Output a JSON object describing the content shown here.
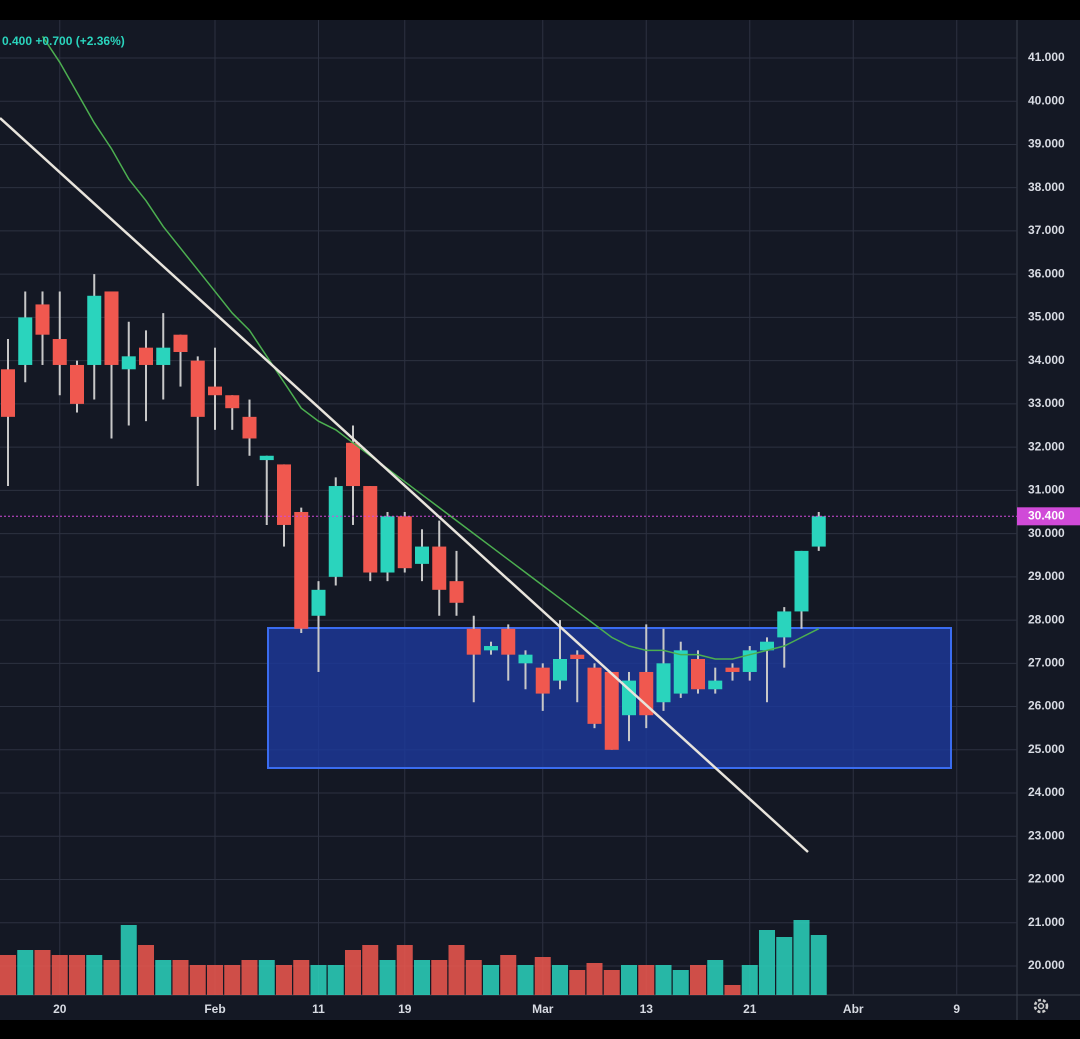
{
  "chart_data": {
    "type": "candlestick",
    "header": "0.400 +0.700 (+2.36%)",
    "categories": [
      null,
      null,
      null,
      "20",
      null,
      null,
      null,
      null,
      null,
      null,
      null,
      null,
      "Feb",
      null,
      null,
      null,
      null,
      null,
      "11",
      null,
      null,
      null,
      null,
      "19",
      null,
      null,
      null,
      null,
      null,
      null,
      null,
      "Mar",
      null,
      null,
      null,
      null,
      null,
      "13",
      null,
      null,
      null,
      null,
      null,
      "21",
      null,
      null,
      null,
      null,
      null,
      "Abr",
      null,
      null,
      null,
      null,
      null,
      "9",
      null,
      null
    ],
    "open": [
      33.8,
      33.9,
      35.3,
      34.5,
      33.9,
      33.9,
      35.6,
      33.8,
      34.3,
      33.9,
      34.6,
      34.0,
      33.4,
      33.2,
      32.7,
      31.7,
      31.6,
      30.5,
      28.1,
      29.0,
      32.1,
      31.1,
      29.1,
      30.4,
      29.3,
      29.7,
      28.9,
      27.8,
      27.3,
      27.8,
      27.0,
      26.9,
      26.6,
      27.2,
      26.9,
      26.8,
      25.8,
      26.8,
      26.1,
      26.3,
      27.1,
      26.4,
      26.9,
      26.8,
      27.3,
      27.6,
      28.2,
      29.7,
      null,
      null,
      null,
      null,
      null,
      null,
      null,
      null,
      null,
      null
    ],
    "high": [
      34.5,
      35.6,
      35.6,
      35.6,
      34.0,
      36.0,
      35.6,
      34.9,
      34.7,
      35.1,
      34.6,
      34.1,
      34.3,
      33.2,
      33.1,
      31.8,
      31.6,
      30.6,
      28.9,
      31.3,
      32.5,
      31.1,
      30.5,
      30.5,
      30.1,
      30.3,
      29.6,
      28.1,
      27.5,
      27.9,
      27.3,
      27.0,
      28.0,
      27.3,
      27.0,
      26.8,
      26.8,
      27.9,
      27.8,
      27.5,
      27.3,
      26.9,
      27.0,
      27.4,
      27.6,
      28.3,
      29.6,
      30.5,
      null,
      null,
      null,
      null,
      null,
      null,
      null,
      null,
      null,
      null
    ],
    "low": [
      31.1,
      33.5,
      33.9,
      33.2,
      32.8,
      33.1,
      32.2,
      32.5,
      32.6,
      33.1,
      33.4,
      31.1,
      32.4,
      32.4,
      31.8,
      30.2,
      29.7,
      27.7,
      26.8,
      28.8,
      30.2,
      28.9,
      28.9,
      29.1,
      28.9,
      28.1,
      28.1,
      26.1,
      27.2,
      26.6,
      26.4,
      25.9,
      26.4,
      26.1,
      25.5,
      25.0,
      25.2,
      25.5,
      25.9,
      26.2,
      26.3,
      26.3,
      26.6,
      26.6,
      26.1,
      26.9,
      27.8,
      29.6,
      null,
      null,
      null,
      null,
      null,
      null,
      null,
      null,
      null,
      null
    ],
    "close": [
      32.7,
      35.0,
      34.6,
      33.9,
      33.0,
      35.5,
      33.9,
      34.1,
      33.9,
      34.3,
      34.2,
      32.7,
      33.2,
      32.9,
      32.2,
      31.8,
      30.2,
      27.8,
      28.7,
      31.1,
      31.1,
      29.1,
      30.4,
      29.2,
      29.7,
      28.7,
      28.4,
      27.2,
      27.4,
      27.2,
      27.2,
      26.3,
      27.1,
      27.1,
      25.6,
      25.0,
      26.6,
      25.8,
      27.0,
      27.3,
      26.4,
      26.6,
      26.8,
      27.3,
      27.5,
      28.2,
      29.6,
      30.4,
      null,
      null,
      null,
      null,
      null,
      null,
      null,
      null,
      null,
      null
    ],
    "volume": [
      40,
      45,
      45,
      40,
      40,
      40,
      35,
      70,
      50,
      35,
      35,
      30,
      30,
      30,
      35,
      35,
      30,
      35,
      30,
      30,
      45,
      50,
      35,
      50,
      35,
      35,
      50,
      35,
      30,
      40,
      30,
      38,
      30,
      25,
      32,
      25,
      30,
      30,
      30,
      25,
      30,
      35,
      10,
      30,
      65,
      58,
      75,
      60,
      null,
      null,
      null,
      null,
      null,
      null,
      null,
      null,
      null,
      null
    ],
    "volume_lim": [
      0,
      100
    ],
    "ma": {
      "color": "#4caf50",
      "values": [
        null,
        null,
        41.5,
        40.9,
        40.2,
        39.5,
        38.9,
        38.2,
        37.7,
        37.1,
        36.6,
        36.1,
        35.6,
        35.1,
        34.7,
        34.1,
        33.5,
        32.9,
        32.6,
        32.4,
        32.1,
        31.8,
        31.5,
        31.2,
        30.9,
        30.6,
        30.3,
        30.0,
        29.7,
        29.4,
        29.1,
        28.8,
        28.5,
        28.2,
        27.9,
        27.6,
        27.4,
        27.3,
        27.3,
        27.2,
        27.2,
        27.1,
        27.1,
        27.2,
        27.3,
        27.4,
        27.6,
        27.8,
        null,
        null,
        null,
        null,
        null,
        null,
        null,
        null,
        null,
        null
      ]
    },
    "up_color": "#2ad4bd",
    "down_color": "#f0584f",
    "ylim": [
      19.8,
      41.9
    ],
    "yticks": [
      {
        "value": 20,
        "label": "20.000"
      },
      {
        "value": 21,
        "label": "21.000"
      },
      {
        "value": 22,
        "label": "22.000"
      },
      {
        "value": 23,
        "label": "23.000"
      },
      {
        "value": 24,
        "label": "24.000"
      },
      {
        "value": 25,
        "label": "25.000"
      },
      {
        "value": 26,
        "label": "26.000"
      },
      {
        "value": 27,
        "label": "27.000"
      },
      {
        "value": 28,
        "label": "28.000"
      },
      {
        "value": 29,
        "label": "29.000"
      },
      {
        "value": 30,
        "label": "30.000"
      },
      {
        "value": 31,
        "label": "31.000"
      },
      {
        "value": 32,
        "label": "32.000"
      },
      {
        "value": 33,
        "label": "33.000"
      },
      {
        "value": 34,
        "label": "34.000"
      },
      {
        "value": 35,
        "label": "35.000"
      },
      {
        "value": 36,
        "label": "36.000"
      },
      {
        "value": 37,
        "label": "37.000"
      },
      {
        "value": 38,
        "label": "38.000"
      },
      {
        "value": 39,
        "label": "39.000"
      },
      {
        "value": 40,
        "label": "40.000"
      },
      {
        "value": 41,
        "label": "41.000"
      }
    ],
    "last_price": {
      "value": 30.4,
      "label": "30.400"
    },
    "grid": true
  }
}
